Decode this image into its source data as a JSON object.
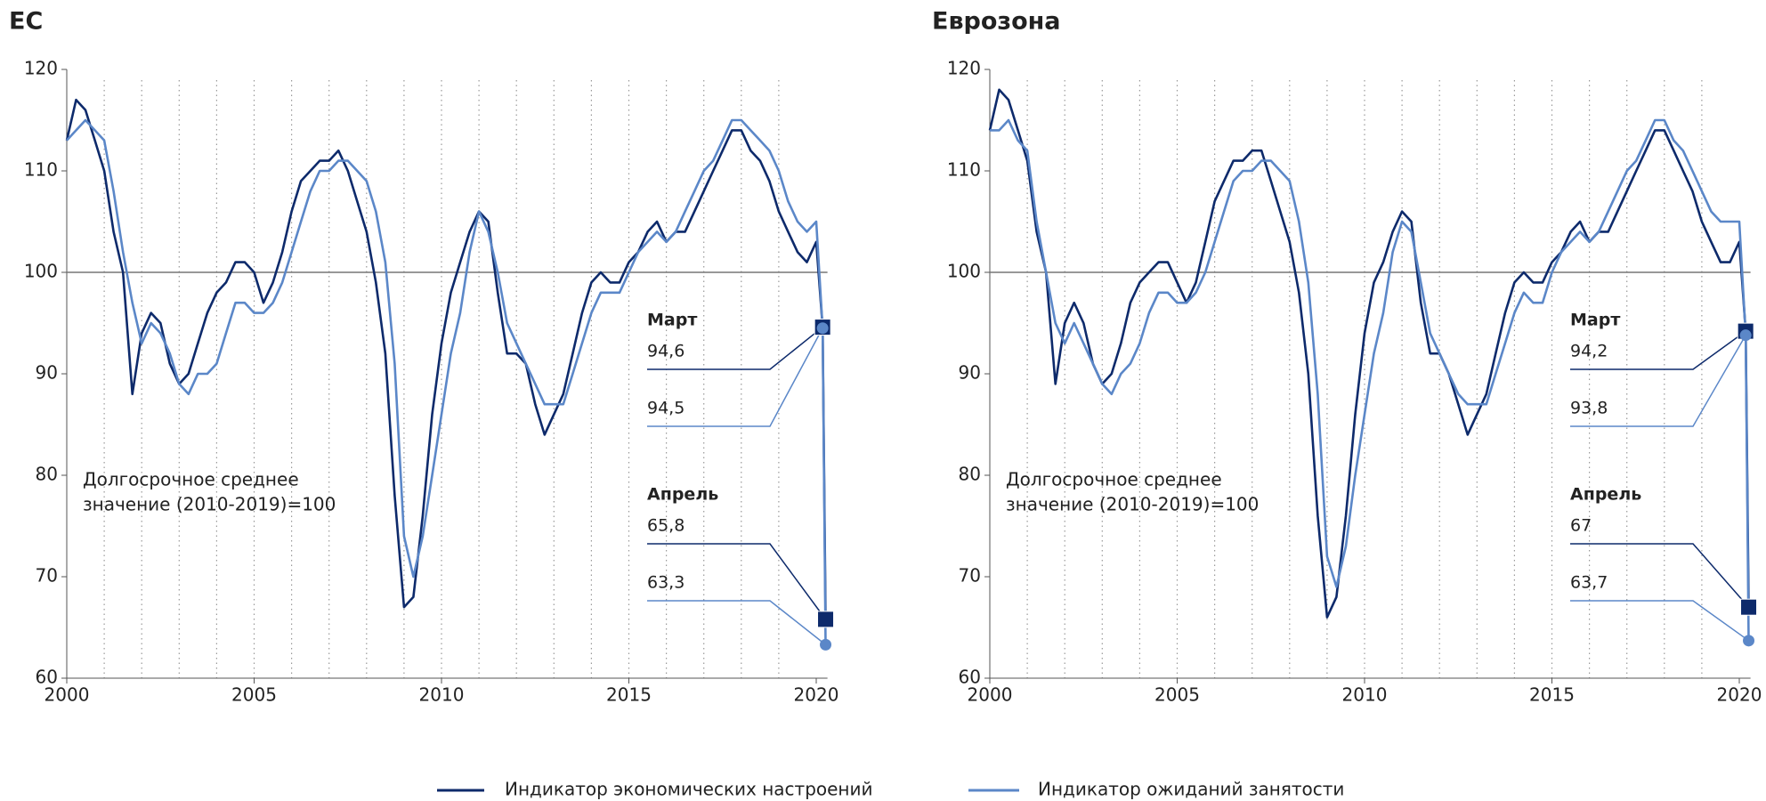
{
  "chart_data": [
    {
      "type": "line",
      "title": "ЕС",
      "x": [
        2000,
        2000.25,
        2000.5,
        2000.75,
        2001,
        2001.25,
        2001.5,
        2001.75,
        2002,
        2002.25,
        2002.5,
        2002.75,
        2003,
        2003.25,
        2003.5,
        2003.75,
        2004,
        2004.25,
        2004.5,
        2004.75,
        2005,
        2005.25,
        2005.5,
        2005.75,
        2006,
        2006.25,
        2006.5,
        2006.75,
        2007,
        2007.25,
        2007.5,
        2007.75,
        2008,
        2008.25,
        2008.5,
        2008.75,
        2009,
        2009.25,
        2009.5,
        2009.75,
        2010,
        2010.25,
        2010.5,
        2010.75,
        2011,
        2011.25,
        2011.5,
        2011.75,
        2012,
        2012.25,
        2012.5,
        2012.75,
        2013,
        2013.25,
        2013.5,
        2013.75,
        2014,
        2014.25,
        2014.5,
        2014.75,
        2015,
        2015.25,
        2015.5,
        2015.75,
        2016,
        2016.25,
        2016.5,
        2016.75,
        2017,
        2017.25,
        2017.5,
        2017.75,
        2018,
        2018.25,
        2018.5,
        2018.75,
        2019,
        2019.25,
        2019.5,
        2019.75,
        2020,
        2020.17,
        2020.25
      ],
      "series": [
        {
          "name": "Индикатор экономических настроений",
          "color": "#0d2a6b",
          "values": [
            113,
            117,
            116,
            113,
            110,
            104,
            100,
            88,
            94,
            96,
            95,
            91,
            89,
            90,
            93,
            96,
            98,
            99,
            101,
            101,
            100,
            97,
            99,
            102,
            106,
            109,
            110,
            111,
            111,
            112,
            110,
            107,
            104,
            99,
            92,
            78,
            67,
            68,
            76,
            86,
            93,
            98,
            101,
            104,
            106,
            105,
            98,
            92,
            92,
            91,
            87,
            84,
            86,
            88,
            92,
            96,
            99,
            100,
            99,
            99,
            101,
            102,
            104,
            105,
            103,
            104,
            104,
            106,
            108,
            110,
            112,
            114,
            114,
            112,
            111,
            109,
            106,
            104,
            102,
            101,
            103,
            94.6,
            65.8
          ]
        },
        {
          "name": "Индикатор ожиданий занятости",
          "color": "#5b87c8",
          "values": [
            113,
            114,
            115,
            114,
            113,
            108,
            102,
            97,
            93,
            95,
            94,
            92,
            89,
            88,
            90,
            90,
            91,
            94,
            97,
            97,
            96,
            96,
            97,
            99,
            102,
            105,
            108,
            110,
            110,
            111,
            111,
            110,
            109,
            106,
            101,
            91,
            74,
            70,
            74,
            80,
            86,
            92,
            96,
            102,
            106,
            104,
            100,
            95,
            93,
            91,
            89,
            87,
            87,
            87,
            90,
            93,
            96,
            98,
            98,
            98,
            100,
            102,
            103,
            104,
            103,
            104,
            106,
            108,
            110,
            111,
            113,
            115,
            115,
            114,
            113,
            112,
            110,
            107,
            105,
            104,
            105,
            94.5,
            63.3
          ]
        }
      ],
      "xlim": [
        2000,
        2020.3
      ],
      "ylim": [
        60,
        120
      ],
      "xticks": [
        2000,
        2005,
        2010,
        2015,
        2020
      ],
      "yticks": [
        60,
        70,
        80,
        90,
        100,
        110,
        120
      ],
      "xgrid": [
        2001,
        2002,
        2003,
        2004,
        2005,
        2006,
        2007,
        2008,
        2009,
        2010,
        2011,
        2012,
        2013,
        2014,
        2015,
        2016,
        2017,
        2018,
        2019
      ],
      "reference_line": 100,
      "note": [
        "Долгосрочное среднее",
        "значение (2010-2019)=100"
      ],
      "callouts": [
        {
          "label": "Март",
          "x": 2020.17,
          "values": [
            94.6,
            94.5
          ],
          "value_labels": [
            "94,6",
            "94,5"
          ]
        },
        {
          "label": "Апрель",
          "x": 2020.25,
          "values": [
            65.8,
            63.3
          ],
          "value_labels": [
            "65,8",
            "63,3"
          ]
        }
      ]
    },
    {
      "type": "line",
      "title": "Еврозона",
      "x": [
        2000,
        2000.25,
        2000.5,
        2000.75,
        2001,
        2001.25,
        2001.5,
        2001.75,
        2002,
        2002.25,
        2002.5,
        2002.75,
        2003,
        2003.25,
        2003.5,
        2003.75,
        2004,
        2004.25,
        2004.5,
        2004.75,
        2005,
        2005.25,
        2005.5,
        2005.75,
        2006,
        2006.25,
        2006.5,
        2006.75,
        2007,
        2007.25,
        2007.5,
        2007.75,
        2008,
        2008.25,
        2008.5,
        2008.75,
        2009,
        2009.25,
        2009.5,
        2009.75,
        2010,
        2010.25,
        2010.5,
        2010.75,
        2011,
        2011.25,
        2011.5,
        2011.75,
        2012,
        2012.25,
        2012.5,
        2012.75,
        2013,
        2013.25,
        2013.5,
        2013.75,
        2014,
        2014.25,
        2014.5,
        2014.75,
        2015,
        2015.25,
        2015.5,
        2015.75,
        2016,
        2016.25,
        2016.5,
        2016.75,
        2017,
        2017.25,
        2017.5,
        2017.75,
        2018,
        2018.25,
        2018.5,
        2018.75,
        2019,
        2019.25,
        2019.5,
        2019.75,
        2020,
        2020.17,
        2020.25
      ],
      "series": [
        {
          "color": "#0d2a6b",
          "values": [
            114,
            118,
            117,
            114,
            111,
            104,
            100,
            89,
            95,
            97,
            95,
            91,
            89,
            90,
            93,
            97,
            99,
            100,
            101,
            101,
            99,
            97,
            99,
            103,
            107,
            109,
            111,
            111,
            112,
            112,
            109,
            106,
            103,
            98,
            90,
            76,
            66,
            68,
            76,
            86,
            94,
            99,
            101,
            104,
            106,
            105,
            97,
            92,
            92,
            90,
            87,
            84,
            86,
            88,
            92,
            96,
            99,
            100,
            99,
            99,
            101,
            102,
            104,
            105,
            103,
            104,
            104,
            106,
            108,
            110,
            112,
            114,
            114,
            112,
            110,
            108,
            105,
            103,
            101,
            101,
            103,
            94.2,
            67
          ]
        },
        {
          "color": "#5b87c8",
          "values": [
            114,
            114,
            115,
            113,
            112,
            105,
            100,
            95,
            93,
            95,
            93,
            91,
            89,
            88,
            90,
            91,
            93,
            96,
            98,
            98,
            97,
            97,
            98,
            100,
            103,
            106,
            109,
            110,
            110,
            111,
            111,
            110,
            109,
            105,
            99,
            88,
            72,
            69,
            73,
            80,
            86,
            92,
            96,
            102,
            105,
            104,
            99,
            94,
            92,
            90,
            88,
            87,
            87,
            87,
            90,
            93,
            96,
            98,
            97,
            97,
            100,
            102,
            103,
            104,
            103,
            104,
            106,
            108,
            110,
            111,
            113,
            115,
            115,
            113,
            112,
            110,
            108,
            106,
            105,
            105,
            105,
            93.8,
            63.7
          ]
        }
      ],
      "xlim": [
        2000,
        2020.3
      ],
      "ylim": [
        60,
        120
      ],
      "xticks": [
        2000,
        2005,
        2010,
        2015,
        2020
      ],
      "yticks": [
        60,
        70,
        80,
        90,
        100,
        110,
        120
      ],
      "xgrid": [
        2001,
        2002,
        2003,
        2004,
        2005,
        2006,
        2007,
        2008,
        2009,
        2010,
        2011,
        2012,
        2013,
        2014,
        2015,
        2016,
        2017,
        2018,
        2019
      ],
      "reference_line": 100,
      "note": [
        "Долгосрочное среднее",
        "значение (2010-2019)=100"
      ],
      "callouts": [
        {
          "label": "Март",
          "x": 2020.17,
          "values": [
            94.2,
            93.8
          ],
          "value_labels": [
            "94,2",
            "93,8"
          ]
        },
        {
          "label": "Апрель",
          "x": 2020.25,
          "values": [
            67,
            63.7
          ],
          "value_labels": [
            "67",
            "63,7"
          ]
        }
      ]
    }
  ]
}
